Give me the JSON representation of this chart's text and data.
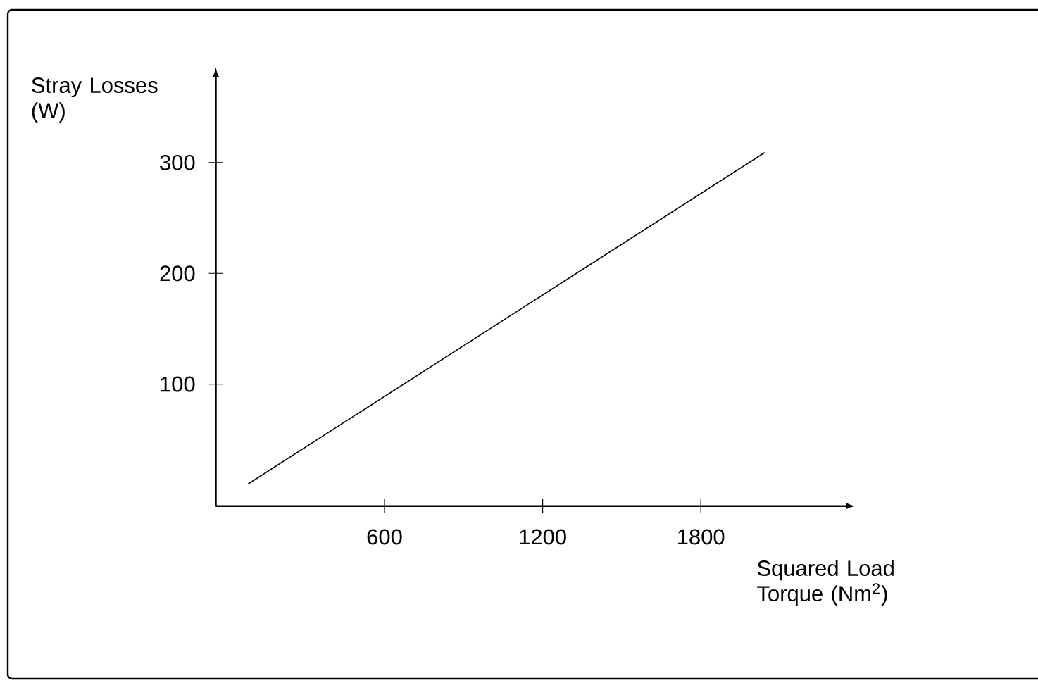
{
  "chart_data": {
    "type": "line",
    "xlabel": "Squared Load Torque (Nm$^{2}$)",
    "ylabel": "Stray Losses (W)",
    "xlim": [
      -40,
      2350
    ],
    "ylim": [
      -10,
      377
    ],
    "xticks": [
      600,
      1200,
      1800
    ],
    "yticks": [
      100,
      200,
      300
    ],
    "series": [
      {
        "x": [
          83,
          2042
        ],
        "values": [
          10,
          309
        ],
        "color": "#000000"
      }
    ]
  }
}
